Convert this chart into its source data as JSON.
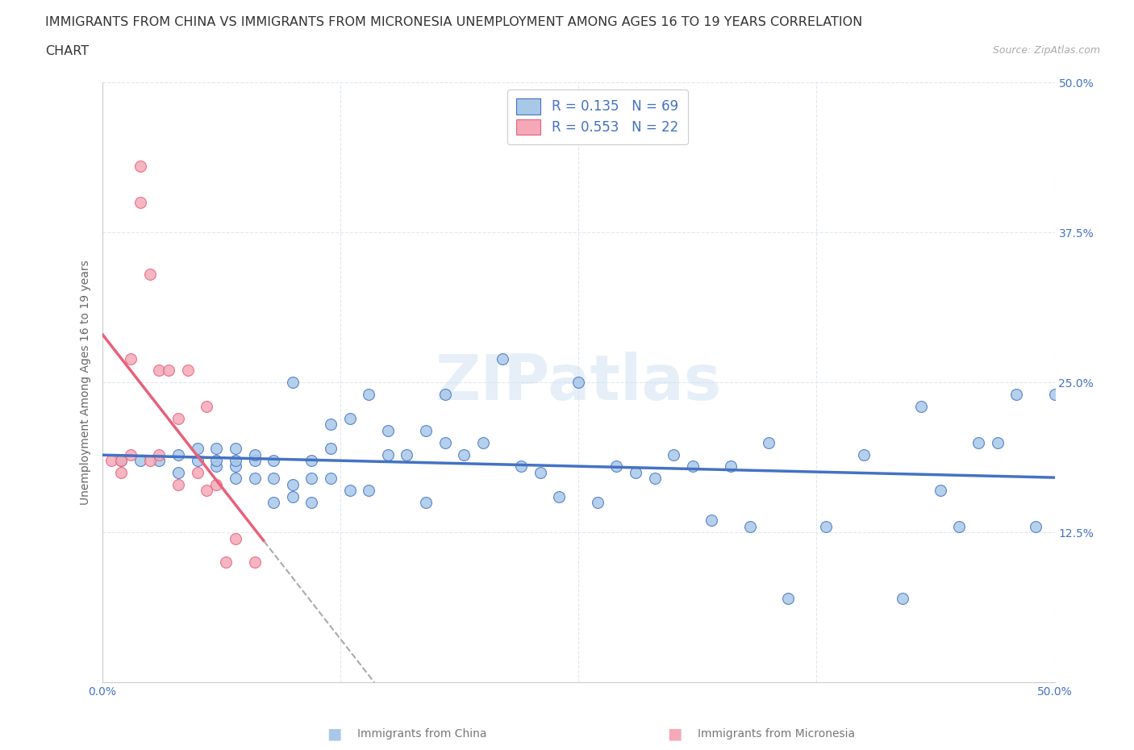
{
  "title_line1": "IMMIGRANTS FROM CHINA VS IMMIGRANTS FROM MICRONESIA UNEMPLOYMENT AMONG AGES 16 TO 19 YEARS CORRELATION",
  "title_line2": "CHART",
  "source_text": "Source: ZipAtlas.com",
  "ylabel": "Unemployment Among Ages 16 to 19 years",
  "xlabel_china": "Immigrants from China",
  "xlabel_micronesia": "Immigrants from Micronesia",
  "watermark": "ZIPatlas",
  "R_china": 0.135,
  "N_china": 69,
  "R_micronesia": 0.553,
  "N_micronesia": 22,
  "xlim": [
    0,
    0.5
  ],
  "ylim": [
    0,
    0.5
  ],
  "yticks": [
    0.125,
    0.25,
    0.375,
    0.5
  ],
  "ytick_labels": [
    "12.5%",
    "25.0%",
    "37.5%",
    "50.0%"
  ],
  "color_china": "#A8C8E8",
  "color_micronesia": "#F4A8B8",
  "line_color_china": "#4472C4",
  "line_color_micronesia": "#E8607A",
  "china_x": [
    0.01,
    0.02,
    0.03,
    0.04,
    0.04,
    0.05,
    0.05,
    0.06,
    0.06,
    0.06,
    0.07,
    0.07,
    0.07,
    0.07,
    0.08,
    0.08,
    0.08,
    0.09,
    0.09,
    0.09,
    0.1,
    0.1,
    0.1,
    0.11,
    0.11,
    0.11,
    0.12,
    0.12,
    0.12,
    0.13,
    0.13,
    0.14,
    0.14,
    0.15,
    0.15,
    0.16,
    0.17,
    0.17,
    0.18,
    0.18,
    0.19,
    0.2,
    0.21,
    0.22,
    0.23,
    0.24,
    0.25,
    0.26,
    0.27,
    0.28,
    0.29,
    0.3,
    0.31,
    0.32,
    0.33,
    0.34,
    0.35,
    0.36,
    0.38,
    0.4,
    0.42,
    0.43,
    0.44,
    0.45,
    0.46,
    0.47,
    0.48,
    0.49,
    0.5
  ],
  "china_y": [
    0.185,
    0.185,
    0.185,
    0.175,
    0.19,
    0.185,
    0.195,
    0.18,
    0.185,
    0.195,
    0.17,
    0.18,
    0.185,
    0.195,
    0.17,
    0.185,
    0.19,
    0.15,
    0.17,
    0.185,
    0.155,
    0.165,
    0.25,
    0.15,
    0.17,
    0.185,
    0.17,
    0.195,
    0.215,
    0.16,
    0.22,
    0.16,
    0.24,
    0.19,
    0.21,
    0.19,
    0.15,
    0.21,
    0.2,
    0.24,
    0.19,
    0.2,
    0.27,
    0.18,
    0.175,
    0.155,
    0.25,
    0.15,
    0.18,
    0.175,
    0.17,
    0.19,
    0.18,
    0.135,
    0.18,
    0.13,
    0.2,
    0.07,
    0.13,
    0.19,
    0.07,
    0.23,
    0.16,
    0.13,
    0.2,
    0.2,
    0.24,
    0.13,
    0.24
  ],
  "micronesia_x": [
    0.005,
    0.01,
    0.01,
    0.015,
    0.015,
    0.02,
    0.02,
    0.025,
    0.025,
    0.03,
    0.03,
    0.035,
    0.04,
    0.04,
    0.045,
    0.05,
    0.055,
    0.055,
    0.06,
    0.065,
    0.07,
    0.08
  ],
  "micronesia_y": [
    0.185,
    0.185,
    0.175,
    0.27,
    0.19,
    0.43,
    0.4,
    0.34,
    0.185,
    0.26,
    0.19,
    0.26,
    0.22,
    0.165,
    0.26,
    0.175,
    0.23,
    0.16,
    0.165,
    0.1,
    0.12,
    0.1
  ],
  "background_color": "#FFFFFF",
  "grid_color": "#E0E8F0"
}
